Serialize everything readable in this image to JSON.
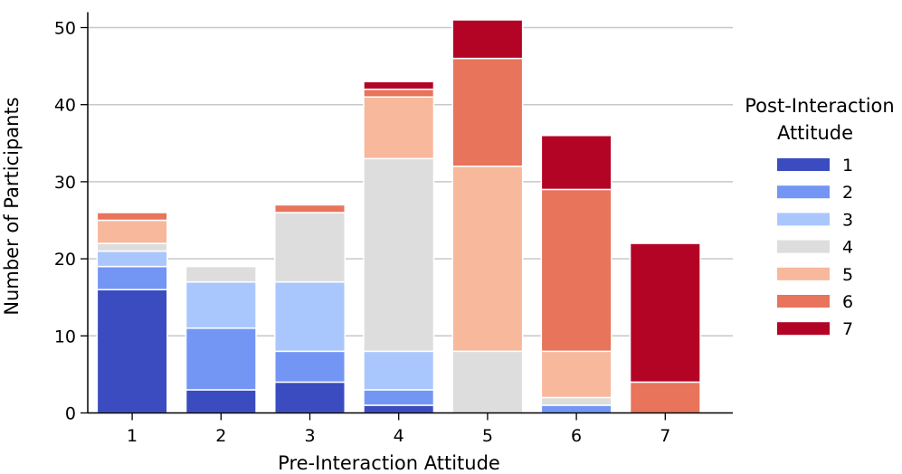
{
  "chart_data": {
    "type": "bar",
    "stacked": true,
    "title": "",
    "xlabel": "Pre-Interaction Attitude",
    "ylabel": "Number of Participants",
    "ylim": [
      0,
      52
    ],
    "yticks": [
      0,
      10,
      20,
      30,
      40,
      50
    ],
    "grid": "horizontal",
    "categories": [
      "1",
      "2",
      "3",
      "4",
      "5",
      "6",
      "7"
    ],
    "legend": {
      "title_lines": [
        "Post-Interaction",
        "Attitude"
      ],
      "placement": "right"
    },
    "series": [
      {
        "name": "1",
        "color": "#3b4cc0",
        "values": [
          16,
          3,
          4,
          1,
          0,
          0,
          0
        ]
      },
      {
        "name": "2",
        "color": "#7396f5",
        "values": [
          3,
          8,
          4,
          2,
          0,
          1,
          0
        ]
      },
      {
        "name": "3",
        "color": "#aac7fd",
        "values": [
          2,
          6,
          9,
          5,
          0,
          0,
          0
        ]
      },
      {
        "name": "4",
        "color": "#dddddd",
        "values": [
          1,
          2,
          9,
          25,
          8,
          1,
          0
        ]
      },
      {
        "name": "5",
        "color": "#f7b89c",
        "values": [
          3,
          0,
          0,
          8,
          24,
          6,
          0
        ]
      },
      {
        "name": "6",
        "color": "#e7745b",
        "values": [
          1,
          0,
          1,
          1,
          14,
          21,
          4
        ]
      },
      {
        "name": "7",
        "color": "#b40426",
        "values": [
          0,
          0,
          0,
          1,
          5,
          7,
          18
        ]
      }
    ]
  }
}
